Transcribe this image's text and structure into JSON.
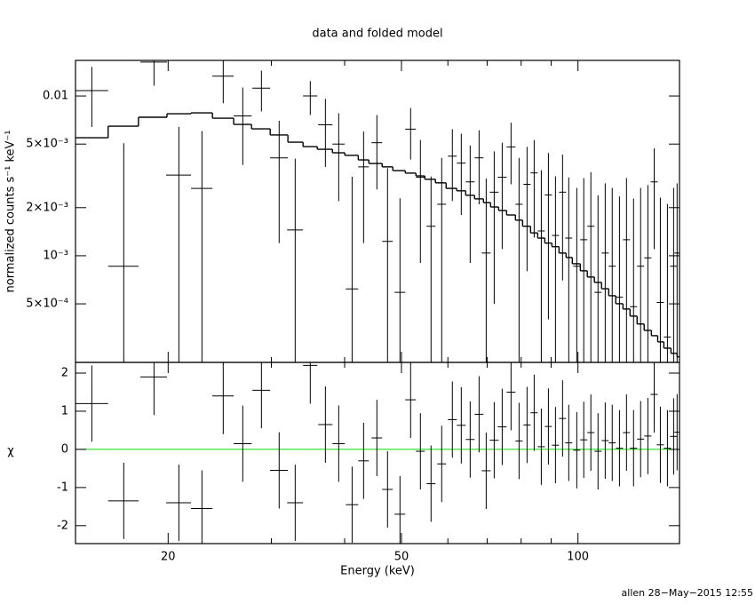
{
  "chart_data": [
    {
      "type": "errorbar",
      "title": "data and folded model",
      "ylabel": "normalized counts s⁻¹ keV⁻¹",
      "xscale": "log",
      "yscale": "log",
      "ylim": [
        0.000215,
        0.0167
      ],
      "yticks": [
        {
          "value": 0.01,
          "label": "0.01"
        },
        {
          "value": 0.005,
          "label": "5×10⁻³"
        },
        {
          "value": 0.002,
          "label": "2×10⁻³"
        },
        {
          "value": 0.001,
          "label": "10⁻³"
        },
        {
          "value": 0.0005,
          "label": "5×10⁻⁴"
        }
      ],
      "x": [
        14.82,
        16.8,
        18.92,
        20.86,
        22.84,
        24.83,
        26.81,
        28.85,
        30.93,
        32.94,
        34.95,
        37.09,
        39.08,
        41.19,
        43.09,
        45.4,
        47.34,
        49.71,
        51.83,
        53.86,
        56.16,
        58.56,
        61.06,
        63.24,
        65.49,
        67.82,
        69.74,
        71.97,
        74.27,
        76.89,
        79.35,
        81.88,
        84.2,
        86.59,
        89.04,
        91.55,
        94.13,
        96.45,
        99.54,
        102.3,
        105.2,
        108.2,
        111.3,
        114.4,
        117.7,
        121,
        124.4,
        127.9,
        131.6,
        134.9,
        138.2,
        142.1,
        145.6,
        147.6
      ],
      "x_err": [
        0.98,
        1,
        0.99,
        1.02,
        0.96,
        1.04,
        0.94,
        1.01,
        1.08,
        1.03,
        0.98,
        1.04,
        0.95,
        1.01,
        0.9,
        0.95,
        0.99,
        1.04,
        1.09,
        0.94,
        0.98,
        1.02,
        1.07,
        1.1,
        1.14,
        1.18,
        1.22,
        1.26,
        1.3,
        1.34,
        1.11,
        1.14,
        1.18,
        1.21,
        1.24,
        1.28,
        1.31,
        1.35,
        1.39,
        1.43,
        1.47,
        1.51,
        1.55,
        1.6,
        1.64,
        1.69,
        1.74,
        1.79,
        1.84,
        1.88,
        1.93,
        1.98,
        2.03,
        1.55
      ],
      "series": [
        {
          "style": "errorbar",
          "color": "#000000",
          "values": [
            0.0108,
            0.00086,
            0.0163,
            0.0032,
            0.00264,
            0.0133,
            0.0075,
            0.0112,
            0.0041,
            0.00145,
            0.01,
            0.0066,
            0.005,
            0.00062,
            0.0036,
            0.0051,
            0.00123,
            0.00059,
            0.0062,
            0.0031,
            0.00153,
            0.0021,
            0.0042,
            0.0038,
            0.0029,
            0.0041,
            0.00104,
            0.0025,
            0.0031,
            0.0048,
            0.0021,
            0.0028,
            0.0033,
            0.00143,
            0.0024,
            0.00134,
            0.0025,
            0.00129,
            0.00086,
            0.00126,
            0.00153,
            0.00059,
            0.00104,
            0.00086,
            0.00055,
            0.00126,
            0.00048,
            0.00086,
            0.00097,
            0.0029,
            0.00051,
            0.00031,
            0.00086,
            0.00104
          ],
          "y_err": [
            0.0044,
            0.0042,
            0.0047,
            0.0032,
            0.0034,
            0.0043,
            0.0038,
            0.0032,
            0.0029,
            0.0026,
            0.0024,
            0.003,
            0.0028,
            0.0025,
            0.0024,
            0.0025,
            0.0023,
            0.0017,
            0.0022,
            0.0022,
            0.0016,
            0.002,
            0.002,
            0.002,
            0.002,
            0.002,
            0.002,
            0.002,
            0.002,
            0.002,
            0.002,
            0.002,
            0.002,
            0.002,
            0.002,
            0.0018,
            0.0018,
            0.0018,
            0.0018,
            0.0018,
            0.0018,
            0.0018,
            0.0018,
            0.0018,
            0.0018,
            0.0018,
            0.0018,
            0.0018,
            0.0018,
            0.0018,
            0.0018,
            0.0018,
            0.0018,
            0.0018
          ]
        },
        {
          "style": "step",
          "color": "#000000",
          "values": [
            0.00548,
            0.00647,
            0.00736,
            0.00774,
            0.00784,
            0.00726,
            0.00664,
            0.00623,
            0.0057,
            0.00514,
            0.00482,
            0.00464,
            0.00441,
            0.00425,
            0.00398,
            0.00378,
            0.0036,
            0.00341,
            0.00329,
            0.00316,
            0.00301,
            0.00286,
            0.00264,
            0.00255,
            0.00239,
            0.00227,
            0.00215,
            0.00202,
            0.00192,
            0.0018,
            0.00167,
            0.00153,
            0.00139,
            0.00129,
            0.0012,
            0.00114,
            0.00104,
            0.000975,
            0.000891,
            0.000805,
            0.000736,
            0.000681,
            0.000622,
            0.000562,
            0.000501,
            0.000464,
            0.000419,
            0.000374,
            0.000341,
            0.000316,
            0.000289,
            0.000264,
            0.000245,
            0.000233
          ]
        }
      ]
    },
    {
      "type": "errorbar",
      "ylabel": "χ",
      "xlabel": "Energy (keV)",
      "xscale": "log",
      "xlim": [
        13.9,
        149
      ],
      "xticks": [
        20,
        50,
        100
      ],
      "xminor": [
        30,
        40,
        60,
        70,
        80,
        90
      ],
      "ylim": [
        -2.47,
        2.28
      ],
      "yticks": [
        -2,
        -1,
        0,
        1,
        2
      ],
      "reference_line": 0,
      "reference_color": "#00dd00",
      "color": "#000000",
      "error": 1,
      "values": [
        1.2,
        -1.35,
        1.9,
        -1.4,
        -1.55,
        1.4,
        0.15,
        1.55,
        -0.55,
        -1.4,
        2.2,
        0.65,
        0.15,
        -1.45,
        -0.3,
        0.3,
        -1.05,
        -1.7,
        1.3,
        -0.05,
        -0.9,
        -0.38,
        0.78,
        0.63,
        0.26,
        0.92,
        -0.56,
        0.24,
        0.59,
        1.5,
        0.22,
        0.64,
        0.96,
        0.07,
        0.6,
        0.11,
        0.81,
        0.17,
        -0.02,
        0.25,
        0.44,
        -0.05,
        0.23,
        0.17,
        0.03,
        0.44,
        0.03,
        0.27,
        0.35,
        1.44,
        0.12,
        0.03,
        0.34,
        0.45
      ]
    },
    {
      "type": "footer",
      "text": "allen 28−May−2015 12:55"
    }
  ]
}
